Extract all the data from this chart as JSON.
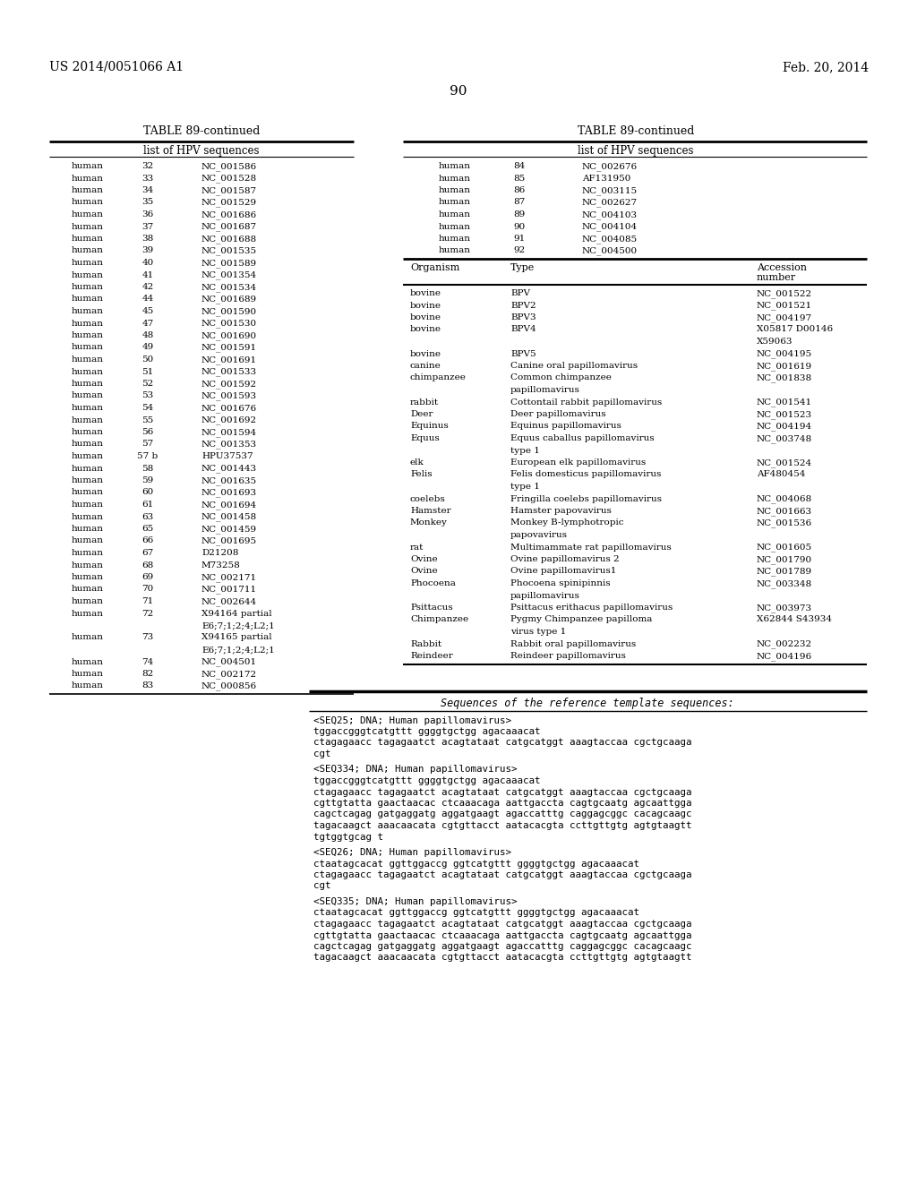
{
  "header_left": "US 2014/0051066 A1",
  "header_right": "Feb. 20, 2014",
  "page_num": "90",
  "table_title": "TABLE 89-continued",
  "bg_color": "#ffffff",
  "left_table": {
    "header": "list of HPV sequences",
    "rows": [
      [
        "human",
        "32",
        "NC_001586"
      ],
      [
        "human",
        "33",
        "NC_001528"
      ],
      [
        "human",
        "34",
        "NC_001587"
      ],
      [
        "human",
        "35",
        "NC_001529"
      ],
      [
        "human",
        "36",
        "NC_001686"
      ],
      [
        "human",
        "37",
        "NC_001687"
      ],
      [
        "human",
        "38",
        "NC_001688"
      ],
      [
        "human",
        "39",
        "NC_001535"
      ],
      [
        "human",
        "40",
        "NC_001589"
      ],
      [
        "human",
        "41",
        "NC_001354"
      ],
      [
        "human",
        "42",
        "NC_001534"
      ],
      [
        "human",
        "44",
        "NC_001689"
      ],
      [
        "human",
        "45",
        "NC_001590"
      ],
      [
        "human",
        "47",
        "NC_001530"
      ],
      [
        "human",
        "48",
        "NC_001690"
      ],
      [
        "human",
        "49",
        "NC_001591"
      ],
      [
        "human",
        "50",
        "NC_001691"
      ],
      [
        "human",
        "51",
        "NC_001533"
      ],
      [
        "human",
        "52",
        "NC_001592"
      ],
      [
        "human",
        "53",
        "NC_001593"
      ],
      [
        "human",
        "54",
        "NC_001676"
      ],
      [
        "human",
        "55",
        "NC_001692"
      ],
      [
        "human",
        "56",
        "NC_001594"
      ],
      [
        "human",
        "57",
        "NC_001353"
      ],
      [
        "human",
        "57 b",
        "HPU37537"
      ],
      [
        "human",
        "58",
        "NC_001443"
      ],
      [
        "human",
        "59",
        "NC_001635"
      ],
      [
        "human",
        "60",
        "NC_001693"
      ],
      [
        "human",
        "61",
        "NC_001694"
      ],
      [
        "human",
        "63",
        "NC_001458"
      ],
      [
        "human",
        "65",
        "NC_001459"
      ],
      [
        "human",
        "66",
        "NC_001695"
      ],
      [
        "human",
        "67",
        "D21208"
      ],
      [
        "human",
        "68",
        "M73258"
      ],
      [
        "human",
        "69",
        "NC_002171"
      ],
      [
        "human",
        "70",
        "NC_001711"
      ],
      [
        "human",
        "71",
        "NC_002644"
      ],
      [
        "human",
        "72",
        "X94164 partial"
      ],
      [
        "",
        "",
        "E6;7;1;2;4;L2;1"
      ],
      [
        "human",
        "73",
        "X94165 partial"
      ],
      [
        "",
        "",
        "E6;7;1;2;4;L2;1"
      ],
      [
        "human",
        "74",
        "NC_004501"
      ],
      [
        "human",
        "82",
        "NC_002172"
      ],
      [
        "human",
        "83",
        "NC_000856"
      ]
    ]
  },
  "right_table_top": {
    "header": "list of HPV sequences",
    "rows": [
      [
        "human",
        "84",
        "NC_002676"
      ],
      [
        "human",
        "85",
        "AF131950"
      ],
      [
        "human",
        "86",
        "NC_003115"
      ],
      [
        "human",
        "87",
        "NC_002627"
      ],
      [
        "human",
        "89",
        "NC_004103"
      ],
      [
        "human",
        "90",
        "NC_004104"
      ],
      [
        "human",
        "91",
        "NC_004085"
      ],
      [
        "human",
        "92",
        "NC_004500"
      ]
    ]
  },
  "right_table_bottom": {
    "rows": [
      [
        "bovine",
        "BPV",
        "NC_001522"
      ],
      [
        "bovine",
        "BPV2",
        "NC_001521"
      ],
      [
        "bovine",
        "BPV3",
        "NC_004197"
      ],
      [
        "bovine",
        "BPV4",
        "X05817 D00146"
      ],
      [
        "",
        "",
        "X59063"
      ],
      [
        "bovine",
        "BPV5",
        "NC_004195"
      ],
      [
        "canine",
        "Canine oral papillomavirus",
        "NC_001619"
      ],
      [
        "chimpanzee",
        "Common chimpanzee",
        "NC_001838"
      ],
      [
        "",
        "papillomavirus",
        ""
      ],
      [
        "rabbit",
        "Cottontail rabbit papillomavirus",
        "NC_001541"
      ],
      [
        "Deer",
        "Deer papillomavirus",
        "NC_001523"
      ],
      [
        "Equinus",
        "Equinus papillomavirus",
        "NC_004194"
      ],
      [
        "Equus",
        "Equus caballus papillomavirus",
        "NC_003748"
      ],
      [
        "",
        "type 1",
        ""
      ],
      [
        "elk",
        "European elk papillomavirus",
        "NC_001524"
      ],
      [
        "Felis",
        "Felis domesticus papillomavirus",
        "AF480454"
      ],
      [
        "",
        "type 1",
        ""
      ],
      [
        "coelebs",
        "Fringilla coelebs papillomavirus",
        "NC_004068"
      ],
      [
        "Hamster",
        "Hamster papovavirus",
        "NC_001663"
      ],
      [
        "Monkey",
        "Monkey B-lymphotropic",
        "NC_001536"
      ],
      [
        "",
        "papovavirus",
        ""
      ],
      [
        "rat",
        "Multimammate rat papillomavirus",
        "NC_001605"
      ],
      [
        "Ovine",
        "Ovine papillomavirus 2",
        "NC_001790"
      ],
      [
        "Ovine",
        "Ovine papillomavirus1",
        "NC_001789"
      ],
      [
        "Phocoena",
        "Phocoena spinipinnis",
        "NC_003348"
      ],
      [
        "",
        "papillomavirus",
        ""
      ],
      [
        "Psittacus",
        "Psittacus erithacus papillomavirus",
        "NC_003973"
      ],
      [
        "Chimpanzee",
        "Pygmy Chimpanzee papilloma",
        "X62844 S43934"
      ],
      [
        "",
        "virus type 1",
        ""
      ],
      [
        "Rabbit",
        "Rabbit oral papillomavirus",
        "NC_002232"
      ],
      [
        "Reindeer",
        "Reindeer papillomavirus",
        "NC_004196"
      ]
    ]
  },
  "sequences": [
    {
      "header": "<SEQ25; DNA; Human papillomavirus>",
      "lines": [
        "tggaccgggtcatgttt ggggtgctgg agacaaacat",
        "ctagagaacc tagagaatct acagtataat catgcatggt aaagtaccaa cgctgcaaga",
        "cgt"
      ]
    },
    {
      "header": "<SEQ334; DNA; Human papillomavirus>",
      "lines": [
        "tggaccgggtcatgttt ggggtgctgg agacaaacat",
        "ctagagaacc tagagaatct acagtataat catgcatggt aaagtaccaa cgctgcaaga",
        "cgttgtatta gaactaacac ctcaaacaga aattgaccta cagtgcaatg agcaattgga",
        "cagctcagag gatgaggatg aggatgaagt agaccatttg caggagcggc cacagcaagc",
        "tagacaagct aaacaacata cgtgttacct aatacacgta ccttgttgtg agtgtaagtt",
        "tgtggtgcag t"
      ]
    },
    {
      "header": "<SEQ26; DNA; Human papillomavirus>",
      "lines": [
        "ctaatagcacat ggttggaccg ggtcatgttt ggggtgctgg agacaaacat",
        "ctagagaacc tagagaatct acagtataat catgcatggt aaagtaccaa cgctgcaaga",
        "cgt"
      ]
    },
    {
      "header": "<SEQ335; DNA; Human papillomavirus>",
      "lines": [
        "ctaatagcacat ggttggaccg ggtcatgttt ggggtgctgg agacaaacat",
        "ctagagaacc tagagaatct acagtataat catgcatggt aaagtaccaa cgctgcaaga",
        "cgttgtatta gaactaacac ctcaaacaga aattgaccta cagtgcaatg agcaattgga",
        "cagctcagag gatgaggatg aggatgaagt agaccatttg caggagcggc cacagcaagc",
        "tagacaagct aaacaacata cgtgttacct aatacacgta ccttgttgtg agtgtaagtt"
      ]
    }
  ]
}
